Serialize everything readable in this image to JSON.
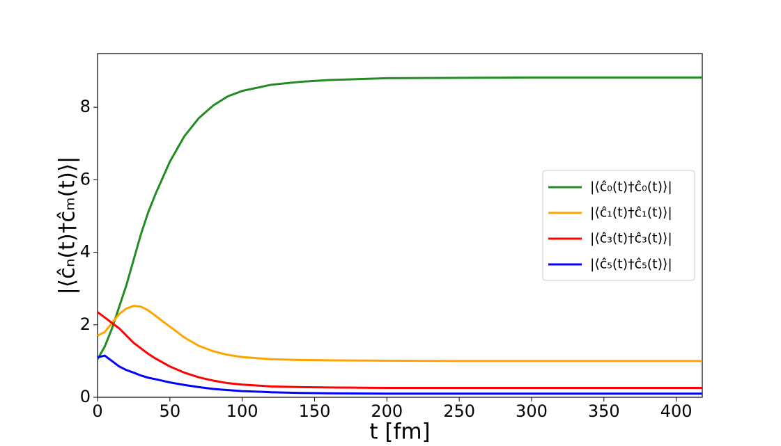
{
  "chart_data": {
    "type": "line",
    "xlabel": "t [fm]",
    "ylabel": "|⟨ĉₙ(t)†ĉₘ(t)⟩|",
    "x": [
      0,
      5,
      10,
      15,
      20,
      25,
      30,
      35,
      40,
      50,
      60,
      70,
      80,
      90,
      100,
      120,
      140,
      160,
      200,
      250,
      300,
      350,
      418
    ],
    "series": [
      {
        "name": "|⟨ĉ₀(t)†ĉ₀(t)⟩|",
        "color": "#228b22",
        "values": [
          1.05,
          1.4,
          1.9,
          2.5,
          3.1,
          3.8,
          4.5,
          5.1,
          5.6,
          6.5,
          7.2,
          7.7,
          8.05,
          8.3,
          8.45,
          8.62,
          8.7,
          8.75,
          8.8,
          8.81,
          8.82,
          8.82,
          8.82
        ]
      },
      {
        "name": "|⟨ĉ₁(t)†ĉ₁(t)⟩|",
        "color": "#ffa500",
        "values": [
          1.7,
          1.8,
          2.05,
          2.3,
          2.45,
          2.52,
          2.5,
          2.4,
          2.25,
          1.95,
          1.65,
          1.42,
          1.27,
          1.17,
          1.11,
          1.05,
          1.03,
          1.02,
          1.01,
          1.0,
          1.0,
          1.0,
          1.0
        ]
      },
      {
        "name": "|⟨ĉ₃(t)†ĉ₃(t)⟩|",
        "color": "#ff0000",
        "values": [
          2.35,
          2.2,
          2.05,
          1.9,
          1.7,
          1.5,
          1.35,
          1.2,
          1.07,
          0.85,
          0.68,
          0.55,
          0.46,
          0.39,
          0.35,
          0.3,
          0.28,
          0.27,
          0.26,
          0.26,
          0.26,
          0.26,
          0.26
        ]
      },
      {
        "name": "|⟨ĉ₅(t)†ĉ₅(t)⟩|",
        "color": "#0000ff",
        "values": [
          1.1,
          1.15,
          1.0,
          0.85,
          0.75,
          0.68,
          0.6,
          0.54,
          0.5,
          0.41,
          0.34,
          0.28,
          0.23,
          0.2,
          0.17,
          0.14,
          0.12,
          0.11,
          0.1,
          0.1,
          0.1,
          0.1,
          0.1
        ]
      }
    ],
    "xlim": [
      0,
      418
    ],
    "ylim": [
      0,
      9.48
    ],
    "xticks": [
      0,
      50,
      100,
      150,
      200,
      250,
      300,
      350,
      400
    ],
    "yticks": [
      0,
      2,
      4,
      6,
      8
    ],
    "grid": false,
    "legend": "right"
  }
}
